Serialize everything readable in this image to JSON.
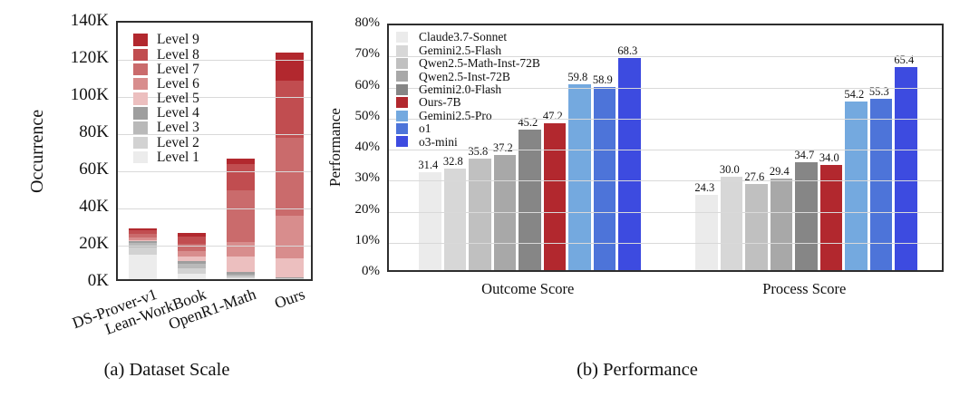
{
  "figure": {
    "background": "#ffffff",
    "border_color": "#2e2e2e",
    "grid_color": "#d9d9d9"
  },
  "chart_data": [
    {
      "type": "bar",
      "stacked": true,
      "title": "(a) Dataset Scale",
      "ylabel": "Occurrence",
      "ylim": [
        0,
        140
      ],
      "yticks": [
        "0K",
        "20K",
        "40K",
        "60K",
        "80K",
        "100K",
        "120K",
        "140K"
      ],
      "grid": "horizontal",
      "legend_position": "upper-left",
      "legend_order": "Level 9 at top, Level 1 at bottom",
      "categories": [
        "DS-Prover-v1",
        "Lean-WorkBook",
        "OpenR1-Math",
        "Ours"
      ],
      "totals": [
        27.5,
        25,
        65,
        122
      ],
      "series": [
        {
          "name": "Level 1",
          "color": "#ececec",
          "values": [
            13,
            3,
            0.5,
            0.3
          ]
        },
        {
          "name": "Level 2",
          "color": "#d2d2d2",
          "values": [
            4,
            3,
            1,
            0.2
          ]
        },
        {
          "name": "Level 3",
          "color": "#b9b9b9",
          "values": [
            2.5,
            2.5,
            1,
            0.3
          ]
        },
        {
          "name": "Level 4",
          "color": "#9e9e9e",
          "values": [
            1,
            1.5,
            1.5,
            0.2
          ]
        },
        {
          "name": "Level 5",
          "color": "#ecbfbf",
          "values": [
            0.5,
            2,
            8,
            10
          ]
        },
        {
          "name": "Level 6",
          "color": "#d88d8d",
          "values": [
            1.5,
            3,
            8,
            23
          ]
        },
        {
          "name": "Level 7",
          "color": "#ca6b6c",
          "values": [
            2,
            4,
            28,
            42
          ]
        },
        {
          "name": "Level 8",
          "color": "#c14d50",
          "values": [
            2,
            4,
            14,
            31
          ]
        },
        {
          "name": "Level 9",
          "color": "#b2282e",
          "values": [
            1,
            2,
            3,
            15
          ]
        }
      ]
    },
    {
      "type": "bar",
      "stacked": false,
      "title": "(b) Performance",
      "ylabel": "Performance",
      "ylim": [
        0,
        80
      ],
      "yticks": [
        "0%",
        "10%",
        "20%",
        "30%",
        "40%",
        "50%",
        "60%",
        "70%",
        "80%"
      ],
      "grid": "horizontal",
      "legend_position": "upper-left",
      "categories": [
        "Outcome Score",
        "Process Score"
      ],
      "series": [
        {
          "name": "Claude3.7-Sonnet",
          "color": "#ebebeb",
          "values": [
            31.4,
            24.3
          ],
          "labels": [
            "31.4",
            "24.3"
          ]
        },
        {
          "name": "Gemini2.5-Flash",
          "color": "#d7d7d7",
          "values": [
            32.8,
            30.0
          ],
          "labels": [
            "32.8",
            "30.0"
          ]
        },
        {
          "name": "Qwen2.5-Math-Inst-72B",
          "color": "#c0c0c0",
          "values": [
            35.8,
            27.6
          ],
          "labels": [
            "35.8",
            "27.6"
          ]
        },
        {
          "name": "Qwen2.5-Inst-72B",
          "color": "#a8a8a8",
          "values": [
            37.2,
            29.4
          ],
          "labels": [
            "37.2",
            "29.4"
          ]
        },
        {
          "name": "Gemini2.0-Flash",
          "color": "#868686",
          "values": [
            45.2,
            34.7
          ],
          "labels": [
            "45.2",
            "34.7"
          ]
        },
        {
          "name": "Ours-7B",
          "color": "#b2282e",
          "values": [
            47.2,
            34.0
          ],
          "labels": [
            "47.2",
            "34.0"
          ]
        },
        {
          "name": "Gemini2.5-Pro",
          "color": "#74a9df",
          "values": [
            59.8,
            54.2
          ],
          "labels": [
            "59.8",
            "54.2"
          ]
        },
        {
          "name": "o1",
          "color": "#4d74d9",
          "values": [
            58.9,
            55.3
          ],
          "labels": [
            "58.9",
            "55.3"
          ]
        },
        {
          "name": "o3-mini",
          "color": "#3d4be0",
          "values": [
            68.3,
            65.4
          ],
          "labels": [
            "68.3",
            "65.4"
          ]
        }
      ]
    }
  ]
}
